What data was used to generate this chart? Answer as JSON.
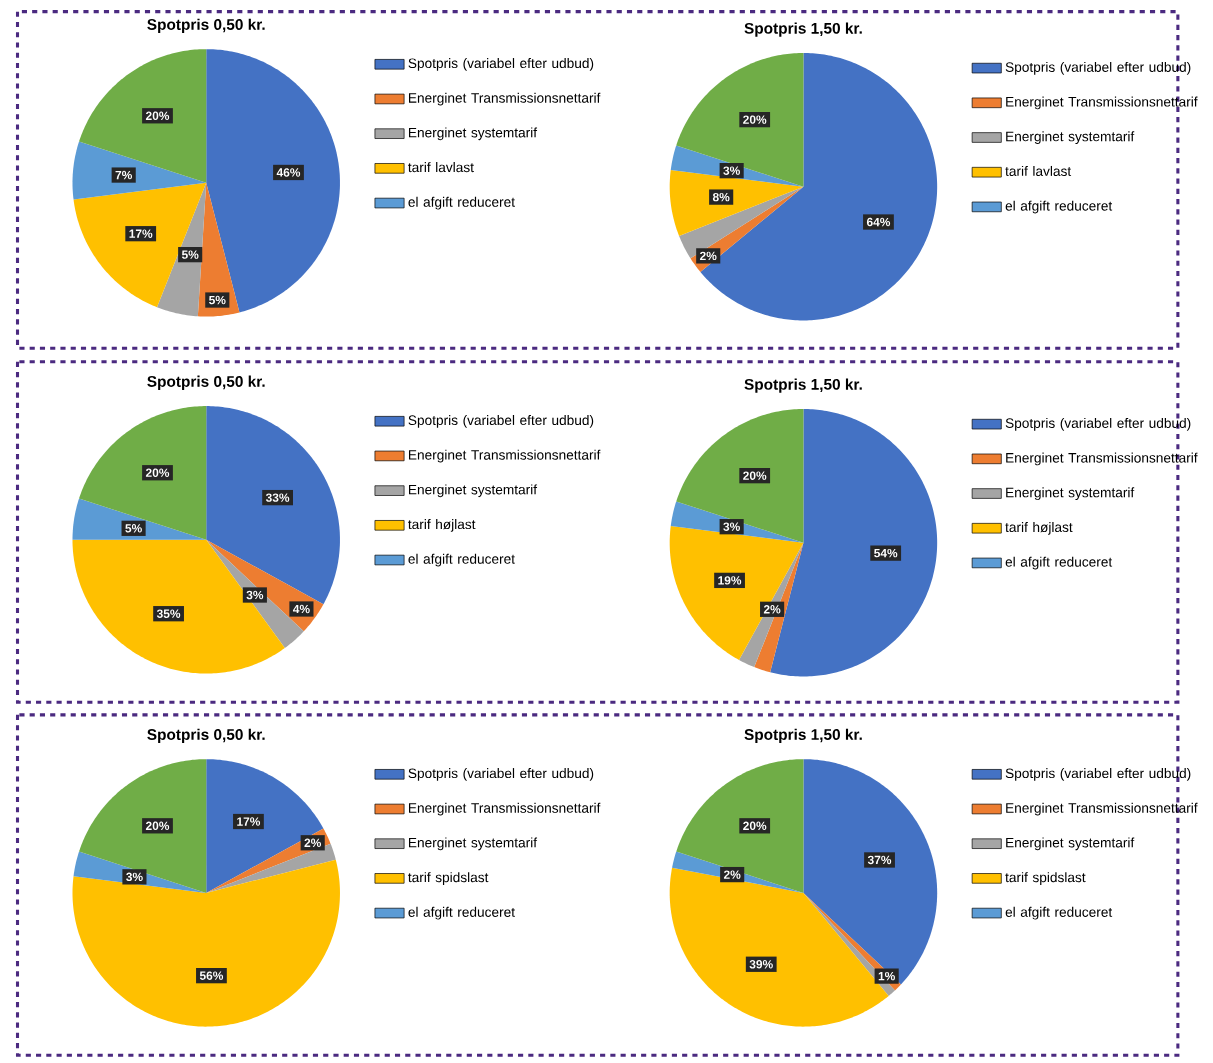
{
  "chart_data": [
    {
      "type": "pie",
      "title": "Spotpris 0,50 kr.",
      "legend": "right",
      "categories": [
        "Spotpris (variabel efter udbud)",
        "Energinet Transmissionsnettarif",
        "Energinet systemtarif",
        "tarif lavlast",
        "el afgift reduceret",
        null
      ],
      "values": [
        46,
        5,
        5,
        17,
        7,
        20
      ],
      "colors": [
        "#4472c4",
        "#ed7d31",
        "#a5a5a5",
        "#ffc000",
        "#5b9bd5",
        "#70ad47"
      ],
      "value_labels": [
        "46%",
        "5%",
        "5%",
        "17%",
        "7%",
        "20%"
      ]
    },
    {
      "type": "pie",
      "title": "Spotpris 1,50 kr.",
      "legend": "right",
      "categories": [
        "Spotpris (variabel efter udbud)",
        "Energinet Transmissionsnettarif",
        "Energinet systemtarif",
        "tarif lavlast",
        "el afgift reduceret",
        null
      ],
      "values": [
        64,
        2,
        3,
        8,
        3,
        20
      ],
      "colors": [
        "#4472c4",
        "#ed7d31",
        "#a5a5a5",
        "#ffc000",
        "#5b9bd5",
        "#70ad47"
      ],
      "value_labels": [
        "64%",
        "2%",
        null,
        "8%",
        "3%",
        "20%"
      ]
    },
    {
      "type": "pie",
      "title": "Spotpris 0,50 kr.",
      "legend": "right",
      "categories": [
        "Spotpris (variabel efter udbud)",
        "Energinet Transmissionsnettarif",
        "Energinet systemtarif",
        "tarif højlast",
        "el afgift reduceret",
        null
      ],
      "values": [
        33,
        4,
        3,
        35,
        5,
        20
      ],
      "colors": [
        "#4472c4",
        "#ed7d31",
        "#a5a5a5",
        "#ffc000",
        "#5b9bd5",
        "#70ad47"
      ],
      "value_labels": [
        "33%",
        "4%",
        "3%",
        "35%",
        "5%",
        "20%"
      ]
    },
    {
      "type": "pie",
      "title": "Spotpris 1,50 kr.",
      "legend": "right",
      "categories": [
        "Spotpris (variabel efter udbud)",
        "Energinet Transmissionsnettarif",
        "Energinet systemtarif",
        "tarif højlast",
        "el afgift reduceret",
        null
      ],
      "values": [
        54,
        2,
        2,
        19,
        3,
        20
      ],
      "colors": [
        "#4472c4",
        "#ed7d31",
        "#a5a5a5",
        "#ffc000",
        "#5b9bd5",
        "#70ad47"
      ],
      "value_labels": [
        "54%",
        null,
        "2%",
        "19%",
        "3%",
        "20%"
      ]
    },
    {
      "type": "pie",
      "title": "Spotpris 0,50 kr.",
      "legend": "right",
      "categories": [
        "Spotpris (variabel efter udbud)",
        "Energinet Transmissionsnettarif",
        "Energinet systemtarif",
        "tarif spidslast",
        "el afgift reduceret",
        null
      ],
      "values": [
        17,
        2,
        2,
        56,
        3,
        20
      ],
      "colors": [
        "#4472c4",
        "#ed7d31",
        "#a5a5a5",
        "#ffc000",
        "#5b9bd5",
        "#70ad47"
      ],
      "value_labels": [
        "17%",
        "2%",
        null,
        "56%",
        "3%",
        "20%"
      ]
    },
    {
      "type": "pie",
      "title": "Spotpris 1,50 kr.",
      "legend": "right",
      "categories": [
        "Spotpris (variabel efter udbud)",
        "Energinet Transmissionsnettarif",
        "Energinet systemtarif",
        "tarif spidslast",
        "el afgift reduceret",
        null
      ],
      "values": [
        37,
        1,
        1,
        39,
        2,
        20
      ],
      "colors": [
        "#4472c4",
        "#ed7d31",
        "#a5a5a5",
        "#ffc000",
        "#5b9bd5",
        "#70ad47"
      ],
      "value_labels": [
        "37%",
        "1%",
        null,
        "39%",
        "2%",
        "20%"
      ]
    }
  ]
}
